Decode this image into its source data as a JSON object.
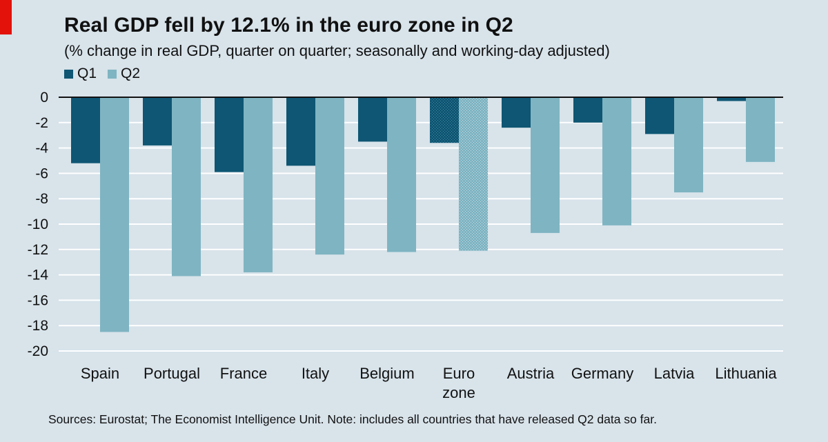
{
  "title": "Real GDP fell by 12.1% in the euro zone in Q2",
  "subtitle": "(% change in real GDP, quarter on quarter; seasonally and working-day adjusted)",
  "footnote": "Sources: Eurostat; The Economist Intelligence Unit. Note: includes all countries that have released Q2 data so far.",
  "colors": {
    "background": "#d8e3ea",
    "q1": "#0e5673",
    "q2": "#7fb4c2",
    "brand_tag": "#e3120b"
  },
  "chart_data": {
    "type": "bar",
    "title": "Real GDP fell by 12.1% in the euro zone in Q2",
    "subtitle": "(% change in real GDP, quarter on quarter; seasonally and working-day adjusted)",
    "categories": [
      "Spain",
      "Portugal",
      "France",
      "Italy",
      "Belgium",
      "Euro zone",
      "Austria",
      "Germany",
      "Latvia",
      "Lithuania"
    ],
    "category_lines": [
      [
        "Spain"
      ],
      [
        "Portugal"
      ],
      [
        "France"
      ],
      [
        "Italy"
      ],
      [
        "Belgium"
      ],
      [
        "Euro",
        "zone"
      ],
      [
        "Austria"
      ],
      [
        "Germany"
      ],
      [
        "Latvia"
      ],
      [
        "Lithuania"
      ]
    ],
    "series": [
      {
        "name": "Q1",
        "values": [
          -5.2,
          -3.8,
          -5.9,
          -5.4,
          -3.5,
          -3.6,
          -2.4,
          -2.0,
          -2.9,
          -0.3
        ]
      },
      {
        "name": "Q2",
        "values": [
          -18.5,
          -14.1,
          -13.8,
          -12.4,
          -12.2,
          -12.1,
          -10.7,
          -10.1,
          -7.5,
          -5.1
        ]
      }
    ],
    "highlight_category": "Euro zone",
    "ylim": [
      -20,
      0
    ],
    "yticks": [
      0,
      -2,
      -4,
      -6,
      -8,
      -10,
      -12,
      -14,
      -16,
      -18,
      -20
    ],
    "grid": true,
    "legend_placement": "top-left",
    "xlabel": "",
    "ylabel": ""
  }
}
